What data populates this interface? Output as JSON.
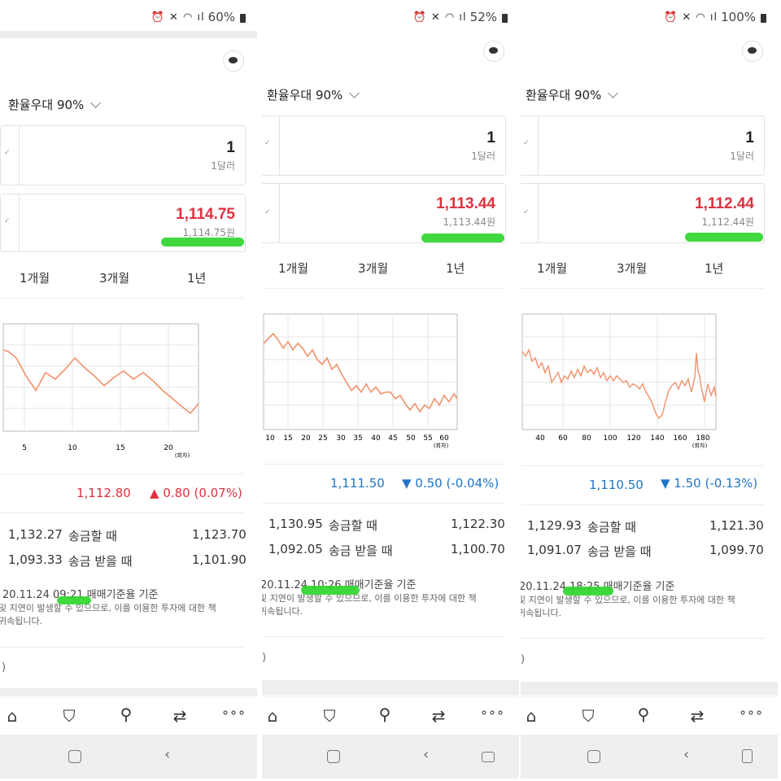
{
  "panels": [
    {
      "status": {
        "battery": "60%"
      },
      "preference": "환율우대 90%",
      "usd": {
        "value": "1",
        "unit": "1달러"
      },
      "krw": {
        "value": "1,114.75",
        "sub": "1,114.75원"
      },
      "periods": [
        "1개월",
        "3개월",
        "1년"
      ],
      "chart_ticks": [
        "5",
        "10",
        "15",
        "20"
      ],
      "chart_unit": "(회차)",
      "current": {
        "value": "1,112.80",
        "change": "▲ 0.80 (0.07%)",
        "direction": "up"
      },
      "send": {
        "left": "1,132.27",
        "label": "송금할 때",
        "right": "1,123.70"
      },
      "receive": {
        "left": "1,093.33",
        "label": "송금 받을 때",
        "right": "1,101.90"
      },
      "basis": "20.11.24 09:21 매매기준율 기준",
      "note1": "및 지연이 발생할 수 있으므로, 이를 이용한 투자에 대한 책",
      "note2": "귀속됩니다.",
      "paren": ")"
    },
    {
      "status": {
        "battery": "52%"
      },
      "preference": "환율우대 90%",
      "usd": {
        "value": "1",
        "unit": "1달러"
      },
      "krw": {
        "value": "1,113.44",
        "sub": "1,113.44원"
      },
      "periods": [
        "1개월",
        "3개월",
        "1년"
      ],
      "chart_ticks": [
        "10",
        "15",
        "20",
        "25",
        "30",
        "35",
        "40",
        "45",
        "50",
        "55",
        "60"
      ],
      "chart_unit": "(회차)",
      "current": {
        "value": "1,111.50",
        "change": "▼ 0.50 (-0.04%)",
        "direction": "down"
      },
      "send": {
        "left": "1,130.95",
        "label": "송금할 때",
        "right": "1,122.30"
      },
      "receive": {
        "left": "1,092.05",
        "label": "송금 받을 때",
        "right": "1,100.70"
      },
      "basis": "20.11.24 10:26 매매기준율 기준",
      "note1": "및 지연이 발생할 수 있으므로, 이를 이용한 투자에 대한 책",
      "note2": "귀속됩니다.",
      "paren": ")"
    },
    {
      "status": {
        "battery": "100%"
      },
      "preference": "환율우대 90%",
      "usd": {
        "value": "1",
        "unit": "1달러"
      },
      "krw": {
        "value": "1,112.44",
        "sub": "1,112.44원"
      },
      "periods": [
        "1개월",
        "3개월",
        "1년"
      ],
      "chart_ticks": [
        "40",
        "60",
        "80",
        "100",
        "120",
        "140",
        "160",
        "180"
      ],
      "chart_unit": "(회차)",
      "current": {
        "value": "1,110.50",
        "change": "▼ 1.50 (-0.13%)",
        "direction": "down"
      },
      "send": {
        "left": "1,129.93",
        "label": "송금할 때",
        "right": "1,121.30"
      },
      "receive": {
        "left": "1,091.07",
        "label": "송금 받을 때",
        "right": "1,099.70"
      },
      "basis": "20.11.24 18:25 매매기준율 기준",
      "note1": "및 지연이 발생할 수 있으므로, 이를 이용한 투자에 대한 책",
      "note2": "귀속됩니다.",
      "paren": ")"
    }
  ],
  "nav_icons": [
    "home-icon",
    "bookmark-icon",
    "search-icon",
    "share-icon",
    "more-icon"
  ],
  "colors": {
    "up": "#e0303f",
    "down": "#1f75c8",
    "chart_line": "#f2906a",
    "highlight": "#2fd62f"
  }
}
